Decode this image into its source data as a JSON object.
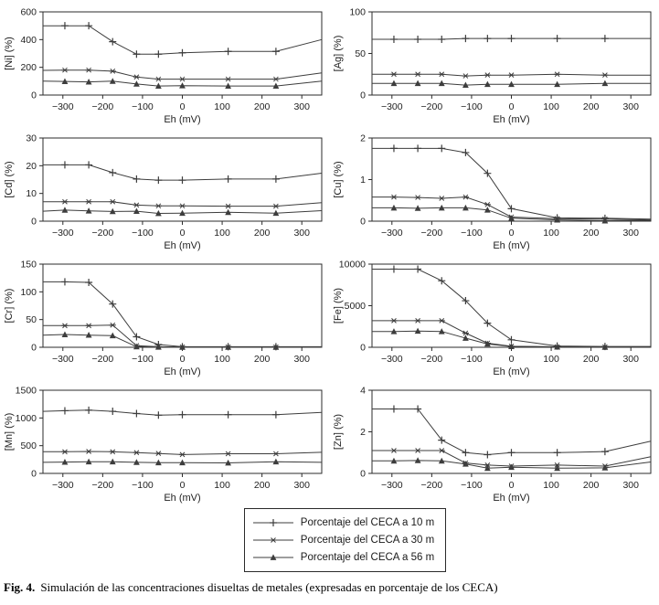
{
  "style": {
    "axis_color": "#2b2b2b",
    "line_color": "#3d3d3d",
    "text_color": "#1f1f1f",
    "background": "#ffffff"
  },
  "figure": {
    "caption_label": "Fig. 4.",
    "caption_text": "Simulación de las concentraciones disueltas de metales (expresadas en porcentaje de los CECA)"
  },
  "legend": {
    "position": "bottom-center",
    "items": [
      {
        "marker": "plus",
        "label": "Porcentaje del CECA a 10 m"
      },
      {
        "marker": "asterisk",
        "label": "Porcentaje del CECA a 30 m"
      },
      {
        "marker": "triangle",
        "label": "Porcentaje del CECA a 56 m"
      }
    ]
  },
  "chart_data": [
    {
      "type": "line",
      "ylabel": "[Ni] (%)",
      "xlabel": "Eh (mV)",
      "xlim": [
        -350,
        350
      ],
      "ylim": [
        0,
        600
      ],
      "xticks": [
        -300,
        -200,
        -100,
        0,
        100,
        200,
        300
      ],
      "yticks": [
        0,
        200,
        400,
        600
      ],
      "grid": false,
      "x": [
        -350,
        -295,
        -235,
        -175,
        -115,
        -60,
        0,
        115,
        235,
        350
      ],
      "series": [
        {
          "name": "Porcentaje del CECA a 10 m",
          "marker": "plus",
          "values": [
            500,
            500,
            500,
            385,
            295,
            295,
            305,
            315,
            315,
            400
          ]
        },
        {
          "name": "Porcentaje del CECA a 30 m",
          "marker": "asterisk",
          "values": [
            178,
            180,
            180,
            172,
            130,
            115,
            115,
            115,
            115,
            160
          ]
        },
        {
          "name": "Porcentaje del CECA a 56 m",
          "marker": "triangle",
          "values": [
            100,
            98,
            95,
            100,
            80,
            65,
            68,
            65,
            65,
            100
          ]
        }
      ]
    },
    {
      "type": "line",
      "ylabel": "[Ag] (%)",
      "xlabel": "Eh (mV)",
      "xlim": [
        -350,
        350
      ],
      "ylim": [
        0,
        100
      ],
      "xticks": [
        -300,
        -200,
        -100,
        0,
        100,
        200,
        300
      ],
      "yticks": [
        0,
        50,
        100
      ],
      "grid": false,
      "x": [
        -350,
        -295,
        -235,
        -175,
        -115,
        -60,
        0,
        115,
        235,
        350
      ],
      "series": [
        {
          "name": "Porcentaje del CECA a 10 m",
          "marker": "plus",
          "values": [
            67,
            67,
            67,
            67,
            68,
            68,
            68,
            68,
            68,
            68
          ]
        },
        {
          "name": "Porcentaje del CECA a 30 m",
          "marker": "asterisk",
          "values": [
            25,
            25,
            25,
            25,
            23,
            24,
            24,
            25,
            24,
            24
          ]
        },
        {
          "name": "Porcentaje del CECA a 56 m",
          "marker": "triangle",
          "values": [
            14,
            14,
            14,
            14,
            12,
            13,
            13,
            13,
            14,
            14
          ]
        }
      ]
    },
    {
      "type": "line",
      "ylabel": "[Cd] (%)",
      "xlabel": "Eh (mV)",
      "xlim": [
        -350,
        350
      ],
      "ylim": [
        0,
        30
      ],
      "xticks": [
        -300,
        -200,
        -100,
        0,
        100,
        200,
        300
      ],
      "yticks": [
        0,
        10,
        20,
        30
      ],
      "grid": false,
      "x": [
        -350,
        -295,
        -235,
        -175,
        -115,
        -60,
        0,
        115,
        235,
        350
      ],
      "series": [
        {
          "name": "Porcentaje del CECA a 10 m",
          "marker": "plus",
          "values": [
            20.3,
            20.3,
            20.3,
            17.5,
            15.2,
            14.8,
            14.8,
            15.2,
            15.2,
            17.3
          ]
        },
        {
          "name": "Porcentaje del CECA a 30 m",
          "marker": "asterisk",
          "values": [
            7.0,
            7.0,
            7.0,
            7.0,
            5.8,
            5.5,
            5.5,
            5.4,
            5.4,
            6.7
          ]
        },
        {
          "name": "Porcentaje del CECA a 56 m",
          "marker": "triangle",
          "values": [
            3.6,
            4.0,
            3.7,
            3.5,
            3.6,
            2.8,
            2.9,
            3.2,
            2.9,
            3.8
          ]
        }
      ]
    },
    {
      "type": "line",
      "ylabel": "[Cu] (%)",
      "xlabel": "Eh (mV)",
      "xlim": [
        -350,
        350
      ],
      "ylim": [
        0,
        2
      ],
      "xticks": [
        -300,
        -200,
        -100,
        0,
        100,
        200,
        300
      ],
      "yticks": [
        0,
        1,
        2
      ],
      "grid": false,
      "x": [
        -350,
        -295,
        -235,
        -175,
        -115,
        -60,
        0,
        115,
        235,
        350
      ],
      "series": [
        {
          "name": "Porcentaje del CECA a 10 m",
          "marker": "plus",
          "values": [
            1.75,
            1.75,
            1.75,
            1.75,
            1.65,
            1.15,
            0.3,
            0.08,
            0.07,
            0.05
          ]
        },
        {
          "name": "Porcentaje del CECA a 30 m",
          "marker": "asterisk",
          "values": [
            0.58,
            0.58,
            0.57,
            0.55,
            0.58,
            0.4,
            0.1,
            0.06,
            0.05,
            0.03
          ]
        },
        {
          "name": "Porcentaje del CECA a 56 m",
          "marker": "triangle",
          "values": [
            0.32,
            0.32,
            0.31,
            0.32,
            0.32,
            0.27,
            0.07,
            0.03,
            0.01,
            0.02
          ]
        }
      ]
    },
    {
      "type": "line",
      "ylabel": "[Cr] (%)",
      "xlabel": "Eh (mV)",
      "xlim": [
        -350,
        350
      ],
      "ylim": [
        0,
        150
      ],
      "xticks": [
        -300,
        -200,
        -100,
        0,
        100,
        200,
        300
      ],
      "yticks": [
        0,
        50,
        100,
        150
      ],
      "grid": false,
      "x": [
        -350,
        -295,
        -235,
        -175,
        -115,
        -60,
        0,
        115,
        235,
        350
      ],
      "series": [
        {
          "name": "Porcentaje del CECA a 10 m",
          "marker": "plus",
          "values": [
            118,
            118,
            117,
            78,
            19,
            5,
            1,
            1,
            1,
            1
          ]
        },
        {
          "name": "Porcentaje del CECA a 30 m",
          "marker": "asterisk",
          "values": [
            39,
            39,
            39,
            40,
            3,
            1,
            0.5,
            0.5,
            0.5,
            0.5
          ]
        },
        {
          "name": "Porcentaje del CECA a 56 m",
          "marker": "triangle",
          "values": [
            22,
            23,
            22,
            21,
            1,
            0.5,
            0.3,
            0.3,
            0.3,
            0.3
          ]
        }
      ]
    },
    {
      "type": "line",
      "ylabel": "[Fe] (%)",
      "xlabel": "Eh (mV)",
      "xlim": [
        -350,
        350
      ],
      "ylim": [
        0,
        10000
      ],
      "xticks": [
        -300,
        -200,
        -100,
        0,
        100,
        200,
        300
      ],
      "yticks": [
        0,
        5000,
        10000
      ],
      "grid": false,
      "x": [
        -350,
        -295,
        -235,
        -175,
        -115,
        -60,
        0,
        115,
        235,
        350
      ],
      "series": [
        {
          "name": "Porcentaje del CECA a 10 m",
          "marker": "plus",
          "values": [
            9400,
            9400,
            9400,
            8000,
            5600,
            2900,
            900,
            150,
            100,
            100
          ]
        },
        {
          "name": "Porcentaje del CECA a 30 m",
          "marker": "asterisk",
          "values": [
            3200,
            3200,
            3200,
            3200,
            1700,
            500,
            120,
            60,
            50,
            50
          ]
        },
        {
          "name": "Porcentaje del CECA a 56 m",
          "marker": "triangle",
          "values": [
            1900,
            1900,
            1950,
            1900,
            1100,
            400,
            100,
            50,
            20,
            20
          ]
        }
      ]
    },
    {
      "type": "line",
      "ylabel": "[Mn] (%)",
      "xlabel": "Eh (mV)",
      "xlim": [
        -350,
        350
      ],
      "ylim": [
        0,
        1500
      ],
      "xticks": [
        -300,
        -200,
        -100,
        0,
        100,
        200,
        300
      ],
      "yticks": [
        0,
        500,
        1000,
        1500
      ],
      "grid": false,
      "x": [
        -350,
        -295,
        -235,
        -175,
        -115,
        -60,
        0,
        115,
        235,
        350
      ],
      "series": [
        {
          "name": "Porcentaje del CECA a 10 m",
          "marker": "plus",
          "values": [
            1120,
            1130,
            1140,
            1120,
            1080,
            1050,
            1060,
            1060,
            1060,
            1100
          ]
        },
        {
          "name": "Porcentaje del CECA a 30 m",
          "marker": "asterisk",
          "values": [
            390,
            390,
            395,
            390,
            375,
            360,
            340,
            355,
            355,
            380
          ]
        },
        {
          "name": "Porcentaje del CECA a 56 m",
          "marker": "triangle",
          "values": [
            200,
            205,
            210,
            210,
            200,
            195,
            195,
            190,
            210,
            200
          ]
        }
      ]
    },
    {
      "type": "line",
      "ylabel": "[Zn] (%)",
      "xlabel": "Eh (mV)",
      "xlim": [
        -350,
        350
      ],
      "ylim": [
        0,
        4
      ],
      "xticks": [
        -300,
        -200,
        -100,
        0,
        100,
        200,
        300
      ],
      "yticks": [
        0,
        2,
        4
      ],
      "grid": false,
      "x": [
        -350,
        -295,
        -235,
        -175,
        -115,
        -60,
        0,
        115,
        235,
        350
      ],
      "series": [
        {
          "name": "Porcentaje del CECA a 10 m",
          "marker": "plus",
          "values": [
            3.1,
            3.1,
            3.1,
            1.6,
            1.0,
            0.9,
            1.0,
            1.0,
            1.05,
            1.55
          ]
        },
        {
          "name": "Porcentaje del CECA a 30 m",
          "marker": "asterisk",
          "values": [
            1.1,
            1.1,
            1.1,
            1.1,
            0.5,
            0.4,
            0.35,
            0.4,
            0.35,
            0.8
          ]
        },
        {
          "name": "Porcentaje del CECA a 56 m",
          "marker": "triangle",
          "values": [
            0.6,
            0.6,
            0.62,
            0.6,
            0.45,
            0.25,
            0.3,
            0.25,
            0.27,
            0.55
          ]
        }
      ]
    }
  ]
}
